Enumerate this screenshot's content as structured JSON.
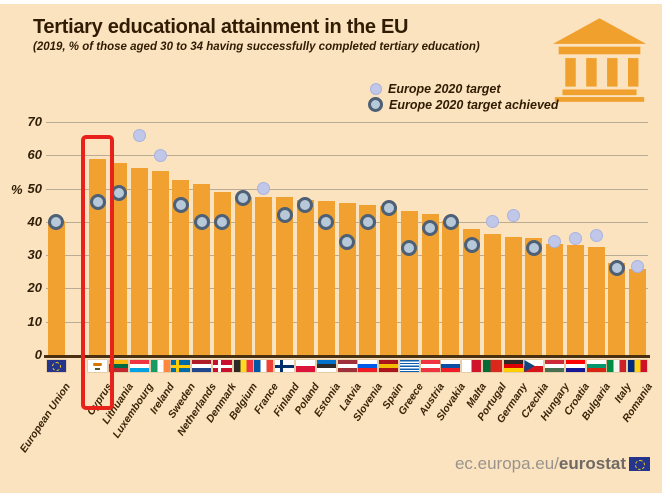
{
  "header": {
    "title": "Tertiary educational attainment in the EU",
    "subtitle": "(2019, % of those aged 30 to 34 having successfully completed tertiary education)"
  },
  "legend": {
    "target_label": "Europe 2020 target",
    "achieved_label": "Europe 2020 target achieved"
  },
  "y_axis": {
    "unit": "%",
    "ticks": [
      70,
      60,
      50,
      40,
      30,
      20,
      10,
      0
    ]
  },
  "footer": {
    "url_regular": "ec.europa.eu/",
    "url_bold": "eurostat",
    "eu_logo": "eu-flag-icon"
  },
  "colors": {
    "background": "#fce3bf",
    "bar": "#f0a130",
    "grid": "#b9ac97",
    "axis": "#4a3010",
    "text": "#2f1c03",
    "highlight_box": "#e8211b",
    "target_fill": "#c0c7e9",
    "target_border": "#a9b3de",
    "achieved_ring": "#4e6076",
    "achieved_fill": "#b7c8d9",
    "building_icon": "#f0a02c",
    "eu_blue": "#26358c",
    "eu_gold": "#f7d117"
  },
  "chart_data": {
    "type": "bar",
    "title": "Tertiary educational attainment in the EU",
    "subtitle": "2019, % of those aged 30 to 34 having successfully completed tertiary education",
    "ylabel": "%",
    "ylim": [
      0,
      70
    ],
    "grid": true,
    "legend_position": "top-right",
    "highlighted_country": "Cyprus",
    "marker_series": "Europe 2020 target",
    "countries": [
      {
        "name": "European Union",
        "value": 40.3,
        "target": 40,
        "achieved": true,
        "flag": {
          "type": "eu"
        }
      },
      {
        "name": "Cyprus",
        "value": 58.8,
        "target": 46,
        "achieved": true,
        "flag": {
          "type": "cy"
        }
      },
      {
        "name": "Lithuania",
        "value": 57.8,
        "target": 48.7,
        "achieved": true,
        "flag": {
          "type": "h",
          "colors": [
            "#FDB913",
            "#006A44",
            "#C1272D"
          ]
        }
      },
      {
        "name": "Luxembourg",
        "value": 56.2,
        "target": 66,
        "achieved": false,
        "flag": {
          "type": "h",
          "colors": [
            "#EF3340",
            "#FFFFFF",
            "#00A2E1"
          ]
        }
      },
      {
        "name": "Ireland",
        "value": 55.4,
        "target": 60,
        "achieved": false,
        "flag": {
          "type": "v",
          "colors": [
            "#169B62",
            "#FFFFFF",
            "#FF883E"
          ]
        }
      },
      {
        "name": "Sweden",
        "value": 52.5,
        "target": 45,
        "achieved": true,
        "flag": {
          "type": "nordic",
          "base": "#006AA7",
          "cross": "#FECC02"
        }
      },
      {
        "name": "Netherlands",
        "value": 51.4,
        "target": 40,
        "achieved": true,
        "flag": {
          "type": "h",
          "colors": [
            "#AE1C28",
            "#FFFFFF",
            "#21468B"
          ]
        }
      },
      {
        "name": "Denmark",
        "value": 49.0,
        "target": 40,
        "achieved": true,
        "flag": {
          "type": "nordic",
          "base": "#C8102E",
          "cross": "#FFFFFF"
        }
      },
      {
        "name": "Belgium",
        "value": 47.5,
        "target": 47,
        "achieved": true,
        "flag": {
          "type": "v",
          "colors": [
            "#2D2926",
            "#FDDA24",
            "#EF3340"
          ]
        }
      },
      {
        "name": "France",
        "value": 47.5,
        "target": 50,
        "achieved": false,
        "flag": {
          "type": "v",
          "colors": [
            "#0055A4",
            "#FFFFFF",
            "#EF4135"
          ]
        }
      },
      {
        "name": "Finland",
        "value": 47.3,
        "target": 42,
        "achieved": true,
        "flag": {
          "type": "nordic",
          "base": "#FFFFFF",
          "cross": "#002F6C"
        }
      },
      {
        "name": "Poland",
        "value": 46.6,
        "target": 45,
        "achieved": true,
        "flag": {
          "type": "h",
          "colors": [
            "#FFFFFF",
            "#DC143C"
          ]
        }
      },
      {
        "name": "Estonia",
        "value": 46.2,
        "target": 40,
        "achieved": true,
        "flag": {
          "type": "h",
          "colors": [
            "#0072CE",
            "#2D2926",
            "#FFFFFF"
          ]
        }
      },
      {
        "name": "Latvia",
        "value": 45.7,
        "target": 34,
        "achieved": true,
        "flag": {
          "type": "h",
          "colors": [
            "#9E3039",
            "#FFFFFF",
            "#9E3039"
          ]
        }
      },
      {
        "name": "Slovenia",
        "value": 44.9,
        "target": 40,
        "achieved": true,
        "flag": {
          "type": "h",
          "colors": [
            "#FFFFFF",
            "#005CE6",
            "#ED1C24"
          ]
        }
      },
      {
        "name": "Spain",
        "value": 44.7,
        "target": 44,
        "achieved": true,
        "flag": {
          "type": "h",
          "colors": [
            "#AA151B",
            "#F1BF00",
            "#AA151B"
          ]
        }
      },
      {
        "name": "Greece",
        "value": 43.1,
        "target": 32,
        "achieved": true,
        "flag": {
          "type": "stripes",
          "colors": [
            "#0D5EAF",
            "#FFFFFF"
          ]
        }
      },
      {
        "name": "Austria",
        "value": 42.4,
        "target": 38,
        "achieved": true,
        "flag": {
          "type": "h",
          "colors": [
            "#EF3340",
            "#FFFFFF",
            "#EF3340"
          ]
        }
      },
      {
        "name": "Slovakia",
        "value": 40.1,
        "target": 40,
        "achieved": true,
        "flag": {
          "type": "h",
          "colors": [
            "#FFFFFF",
            "#0B4EA2",
            "#EE1C25"
          ]
        }
      },
      {
        "name": "Malta",
        "value": 37.8,
        "target": 33,
        "achieved": true,
        "flag": {
          "type": "v2",
          "colors": [
            "#FFFFFF",
            "#CF142B"
          ],
          "split": 50
        }
      },
      {
        "name": "Portugal",
        "value": 36.2,
        "target": 40,
        "achieved": false,
        "flag": {
          "type": "v2",
          "colors": [
            "#046A38",
            "#DA291C"
          ],
          "split": 40
        }
      },
      {
        "name": "Germany",
        "value": 35.5,
        "target": 42,
        "achieved": false,
        "flag": {
          "type": "h",
          "colors": [
            "#2D2926",
            "#DD0000",
            "#FFCE00"
          ]
        }
      },
      {
        "name": "Czechia",
        "value": 35.1,
        "target": 32,
        "achieved": true,
        "flag": {
          "type": "czech",
          "colors": [
            "#FFFFFF",
            "#D7141A"
          ],
          "triangle": "#11457E"
        }
      },
      {
        "name": "Hungary",
        "value": 33.4,
        "target": 34,
        "achieved": false,
        "flag": {
          "type": "h",
          "colors": [
            "#CE2939",
            "#FFFFFF",
            "#477050"
          ]
        }
      },
      {
        "name": "Croatia",
        "value": 33.1,
        "target": 35,
        "achieved": false,
        "flag": {
          "type": "h",
          "colors": [
            "#FF0000",
            "#FFFFFF",
            "#171796"
          ]
        }
      },
      {
        "name": "Bulgaria",
        "value": 32.5,
        "target": 36,
        "achieved": false,
        "flag": {
          "type": "h",
          "colors": [
            "#FFFFFF",
            "#00966E",
            "#D62612"
          ]
        }
      },
      {
        "name": "Italy",
        "value": 27.6,
        "target": 26,
        "achieved": true,
        "flag": {
          "type": "v",
          "colors": [
            "#008C45",
            "#F4F5F0",
            "#CD212A"
          ]
        }
      },
      {
        "name": "Romania",
        "value": 25.8,
        "target": 26.7,
        "achieved": false,
        "flag": {
          "type": "v",
          "colors": [
            "#002B7F",
            "#FCD116",
            "#CE1126"
          ]
        }
      }
    ]
  }
}
